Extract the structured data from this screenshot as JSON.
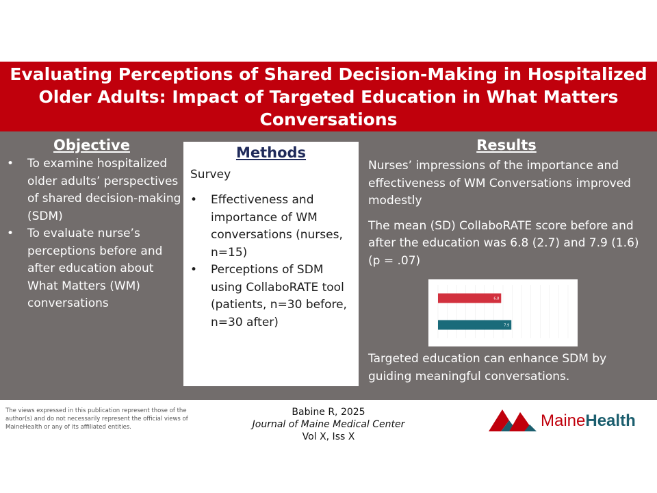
{
  "title": "Evaluating Perceptions of Shared Decision-Making in Hospitalized Older Adults: Impact of Targeted Education in What Matters Conversations",
  "objective": {
    "heading": "Objective",
    "items": [
      "To examine hospitalized older adults’ perspectives of shared decision-making (SDM)",
      "To evaluate nurse’s perceptions before and after education about What Matters (WM) conversations"
    ]
  },
  "methods": {
    "heading": "Methods",
    "intro": "Survey",
    "items": [
      "Effectiveness and importance of WM conversations (nurses, n=15)",
      "Perceptions of SDM using CollaboRATE tool (patients, n=30 before, n=30 after)"
    ]
  },
  "results": {
    "heading": "Results",
    "paragraphs": [
      "Nurses’  impressions of the importance and effectiveness of WM Conversations improved modestly",
      "The mean (SD) CollaboRATE score before and after the education was 6.8 (2.7) and 7.9 (1.6) (p = .07)",
      "Targeted education can enhance SDM by guiding meaningful conversations."
    ]
  },
  "chart_data": {
    "type": "bar",
    "orientation": "horizontal",
    "categories": [
      "",
      ""
    ],
    "values": [
      6.8,
      7.9
    ],
    "data_labels": [
      "6.8",
      "7.9"
    ],
    "colors": [
      "#d2313e",
      "#1a6b7a"
    ],
    "xlim": [
      0,
      14
    ],
    "grid": true
  },
  "footer": {
    "disclaimer": "The views expressed in this publication represent those of the author(s) and do not necessarily represent the official views of MaineHealth or any of its affiliated entities.",
    "citation_author": "Babine R, 2025",
    "citation_journal": "Journal of Maine Medical Center",
    "citation_volume": "Vol X, Iss X"
  },
  "logo": {
    "part1": "Maine",
    "part2": "Health",
    "colors": {
      "red": "#c0000c",
      "teal": "#1b5e6e"
    }
  }
}
